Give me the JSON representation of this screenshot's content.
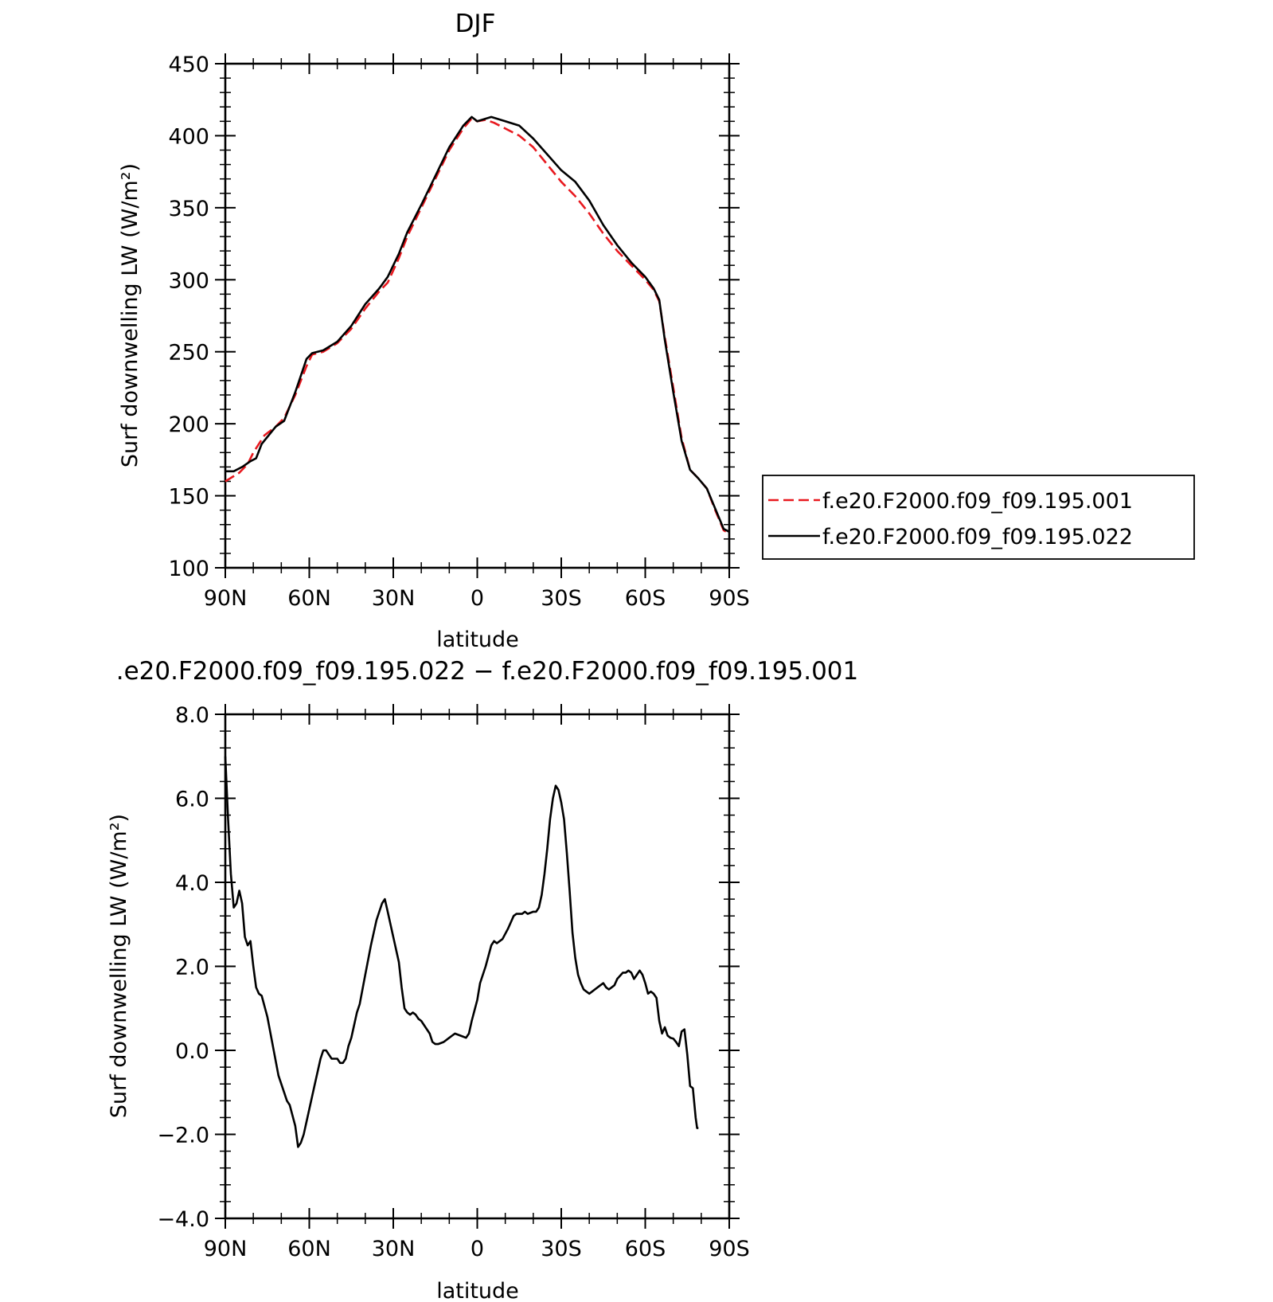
{
  "chart_data": [
    {
      "type": "line",
      "title": "DJF",
      "xlabel": "latitude",
      "ylabel": "Surf downwelling LW (W/m²)",
      "xlim": [
        90,
        -90
      ],
      "ylim": [
        100,
        450
      ],
      "yticks": [
        "100",
        "150",
        "200",
        "250",
        "300",
        "350",
        "400",
        "450"
      ],
      "xticks": [
        {
          "value": 90,
          "label": "90N"
        },
        {
          "value": 60,
          "label": "60N"
        },
        {
          "value": 30,
          "label": "30N"
        },
        {
          "value": 0,
          "label": "0"
        },
        {
          "value": -30,
          "label": "30S"
        },
        {
          "value": -60,
          "label": "60S"
        },
        {
          "value": -90,
          "label": "90S"
        }
      ],
      "legend_position": "right",
      "series": [
        {
          "name": "f.e20.F2000.f09_f09.195.001",
          "color": "#e8191f",
          "dash": "dashed",
          "points": [
            [
              90,
              160
            ],
            [
              85,
              166
            ],
            [
              82,
              172
            ],
            [
              80,
              180
            ],
            [
              76,
              192
            ],
            [
              72,
              198
            ],
            [
              69,
              204
            ],
            [
              65,
              220
            ],
            [
              61,
              240
            ],
            [
              59,
              248
            ],
            [
              55,
              250
            ],
            [
              50,
              256
            ],
            [
              45,
              266
            ],
            [
              40,
              280
            ],
            [
              35,
              292
            ],
            [
              32,
              298
            ],
            [
              28,
              315
            ],
            [
              25,
              330
            ],
            [
              20,
              350
            ],
            [
              15,
              370
            ],
            [
              10,
              390
            ],
            [
              5,
              405
            ],
            [
              2,
              412
            ],
            [
              0,
              410
            ],
            [
              -3,
              411
            ],
            [
              -6,
              409
            ],
            [
              -10,
              405
            ],
            [
              -15,
              400
            ],
            [
              -20,
              392
            ],
            [
              -25,
              380
            ],
            [
              -30,
              368
            ],
            [
              -35,
              358
            ],
            [
              -40,
              346
            ],
            [
              -45,
              332
            ],
            [
              -50,
              320
            ],
            [
              -55,
              310
            ],
            [
              -60,
              300
            ],
            [
              -63,
              293
            ],
            [
              -65,
              285
            ],
            [
              -67,
              260
            ],
            [
              -70,
              225
            ],
            [
              -73,
              190
            ],
            [
              -76,
              168
            ],
            [
              -79,
              162
            ],
            [
              -82,
              155
            ],
            [
              -85,
              140
            ],
            [
              -88,
              126
            ],
            [
              -90,
              124
            ]
          ]
        },
        {
          "name": "f.e20.F2000.f09_f09.195.022",
          "color": "#000000",
          "dash": "solid",
          "points": [
            [
              90,
              167
            ],
            [
              87,
              167
            ],
            [
              84,
              170
            ],
            [
              81,
              174
            ],
            [
              79,
              176
            ],
            [
              77,
              186
            ],
            [
              72,
              198
            ],
            [
              69,
              202
            ],
            [
              65,
              222
            ],
            [
              61,
              245
            ],
            [
              59,
              249
            ],
            [
              55,
              251
            ],
            [
              50,
              257
            ],
            [
              45,
              268
            ],
            [
              40,
              283
            ],
            [
              35,
              294
            ],
            [
              32,
              302
            ],
            [
              28,
              318
            ],
            [
              25,
              333
            ],
            [
              20,
              352
            ],
            [
              15,
              372
            ],
            [
              10,
              392
            ],
            [
              5,
              407
            ],
            [
              2,
              413
            ],
            [
              0,
              410
            ],
            [
              -5,
              413
            ],
            [
              -10,
              410
            ],
            [
              -15,
              407
            ],
            [
              -20,
              398
            ],
            [
              -25,
              387
            ],
            [
              -30,
              376
            ],
            [
              -35,
              368
            ],
            [
              -40,
              355
            ],
            [
              -45,
              338
            ],
            [
              -50,
              324
            ],
            [
              -55,
              312
            ],
            [
              -60,
              302
            ],
            [
              -63,
              294
            ],
            [
              -65,
              286
            ],
            [
              -67,
              258
            ],
            [
              -70,
              222
            ],
            [
              -73,
              188
            ],
            [
              -76,
              168
            ],
            [
              -79,
              162
            ],
            [
              -82,
              155
            ],
            [
              -85,
              141
            ],
            [
              -88,
              127
            ],
            [
              -90,
              125
            ]
          ]
        }
      ]
    },
    {
      "type": "line",
      "title": ".e20.F2000.f09_f09.195.022 − f.e20.F2000.f09_f09.195.001",
      "xlabel": "latitude",
      "ylabel": "Surf downwelling LW (W/m²)",
      "xlim": [
        90,
        -90
      ],
      "ylim": [
        -4,
        8
      ],
      "yticks": [
        "−4.0",
        "−2.0",
        "0.0",
        "2.0",
        "4.0",
        "6.0",
        "8.0"
      ],
      "xticks": [
        {
          "value": 90,
          "label": "90N"
        },
        {
          "value": 60,
          "label": "60N"
        },
        {
          "value": 30,
          "label": "30N"
        },
        {
          "value": 0,
          "label": "0"
        },
        {
          "value": -30,
          "label": "30S"
        },
        {
          "value": -60,
          "label": "60S"
        },
        {
          "value": -90,
          "label": "90S"
        }
      ],
      "series": [
        {
          "color": "#000000",
          "dash": "solid",
          "points": [
            [
              90,
              7.0
            ],
            [
              89,
              5.5
            ],
            [
              88,
              4.2
            ],
            [
              87,
              3.4
            ],
            [
              86,
              3.5
            ],
            [
              85,
              3.8
            ],
            [
              84,
              3.5
            ],
            [
              83,
              2.7
            ],
            [
              82,
              2.5
            ],
            [
              81,
              2.6
            ],
            [
              80,
              2.0
            ],
            [
              79,
              1.5
            ],
            [
              78,
              1.35
            ],
            [
              77,
              1.3
            ],
            [
              75,
              0.8
            ],
            [
              73,
              0.1
            ],
            [
              71,
              -0.6
            ],
            [
              69,
              -1.0
            ],
            [
              68,
              -1.2
            ],
            [
              67,
              -1.3
            ],
            [
              65,
              -1.8
            ],
            [
              64,
              -2.3
            ],
            [
              63,
              -2.2
            ],
            [
              62,
              -2.0
            ],
            [
              60,
              -1.4
            ],
            [
              58,
              -0.8
            ],
            [
              56,
              -0.2
            ],
            [
              55,
              0.0
            ],
            [
              54,
              0.0
            ],
            [
              53,
              -0.1
            ],
            [
              52,
              -0.2
            ],
            [
              50,
              -0.2
            ],
            [
              49,
              -0.3
            ],
            [
              48,
              -0.3
            ],
            [
              47,
              -0.2
            ],
            [
              46,
              0.1
            ],
            [
              45,
              0.3
            ],
            [
              44,
              0.6
            ],
            [
              43,
              0.9
            ],
            [
              42,
              1.1
            ],
            [
              40,
              1.8
            ],
            [
              38,
              2.5
            ],
            [
              36,
              3.1
            ],
            [
              35,
              3.3
            ],
            [
              34,
              3.5
            ],
            [
              33,
              3.6
            ],
            [
              32,
              3.3
            ],
            [
              30,
              2.7
            ],
            [
              28,
              2.1
            ],
            [
              27,
              1.5
            ],
            [
              26,
              1.0
            ],
            [
              25,
              0.9
            ],
            [
              24,
              0.85
            ],
            [
              23,
              0.9
            ],
            [
              22,
              0.85
            ],
            [
              21,
              0.75
            ],
            [
              20,
              0.7
            ],
            [
              18,
              0.5
            ],
            [
              17,
              0.4
            ],
            [
              16,
              0.2
            ],
            [
              15,
              0.15
            ],
            [
              14,
              0.15
            ],
            [
              12,
              0.2
            ],
            [
              10,
              0.3
            ],
            [
              9,
              0.35
            ],
            [
              8,
              0.4
            ],
            [
              6,
              0.35
            ],
            [
              4,
              0.3
            ],
            [
              3,
              0.4
            ],
            [
              2,
              0.7
            ],
            [
              0,
              1.2
            ],
            [
              -1,
              1.6
            ],
            [
              -3,
              2.0
            ],
            [
              -5,
              2.5
            ],
            [
              -6,
              2.6
            ],
            [
              -7,
              2.55
            ],
            [
              -9,
              2.65
            ],
            [
              -11,
              2.9
            ],
            [
              -13,
              3.2
            ],
            [
              -14,
              3.25
            ],
            [
              -16,
              3.25
            ],
            [
              -17,
              3.3
            ],
            [
              -18,
              3.25
            ],
            [
              -20,
              3.3
            ],
            [
              -21,
              3.3
            ],
            [
              -22,
              3.4
            ],
            [
              -23,
              3.7
            ],
            [
              -24,
              4.2
            ],
            [
              -25,
              4.8
            ],
            [
              -26,
              5.5
            ],
            [
              -27,
              6.0
            ],
            [
              -28,
              6.3
            ],
            [
              -29,
              6.2
            ],
            [
              -30,
              5.9
            ],
            [
              -31,
              5.5
            ],
            [
              -32,
              4.7
            ],
            [
              -33,
              3.8
            ],
            [
              -34,
              2.8
            ],
            [
              -35,
              2.2
            ],
            [
              -36,
              1.8
            ],
            [
              -37,
              1.6
            ],
            [
              -38,
              1.45
            ],
            [
              -39,
              1.4
            ],
            [
              -40,
              1.35
            ],
            [
              -41,
              1.4
            ],
            [
              -42,
              1.45
            ],
            [
              -44,
              1.55
            ],
            [
              -45,
              1.6
            ],
            [
              -46,
              1.5
            ],
            [
              -47,
              1.45
            ],
            [
              -48,
              1.5
            ],
            [
              -49,
              1.55
            ],
            [
              -50,
              1.7
            ],
            [
              -52,
              1.85
            ],
            [
              -53,
              1.85
            ],
            [
              -54,
              1.9
            ],
            [
              -55,
              1.85
            ],
            [
              -56,
              1.7
            ],
            [
              -57,
              1.8
            ],
            [
              -58,
              1.9
            ],
            [
              -59,
              1.8
            ],
            [
              -60,
              1.6
            ],
            [
              -61,
              1.35
            ],
            [
              -62,
              1.4
            ],
            [
              -63,
              1.35
            ],
            [
              -64,
              1.25
            ],
            [
              -65,
              0.7
            ],
            [
              -66,
              0.4
            ],
            [
              -67,
              0.55
            ],
            [
              -68,
              0.35
            ],
            [
              -69,
              0.3
            ],
            [
              -70,
              0.28
            ],
            [
              -71,
              0.2
            ],
            [
              -72,
              0.1
            ],
            [
              -73,
              0.45
            ],
            [
              -74,
              0.5
            ],
            [
              -75,
              -0.1
            ],
            [
              -76,
              -0.85
            ],
            [
              -77,
              -0.9
            ],
            [
              -78,
              -1.6
            ],
            [
              -78.5,
              -1.85
            ],
            [
              -79,
              -1.85
            ]
          ]
        }
      ]
    }
  ]
}
